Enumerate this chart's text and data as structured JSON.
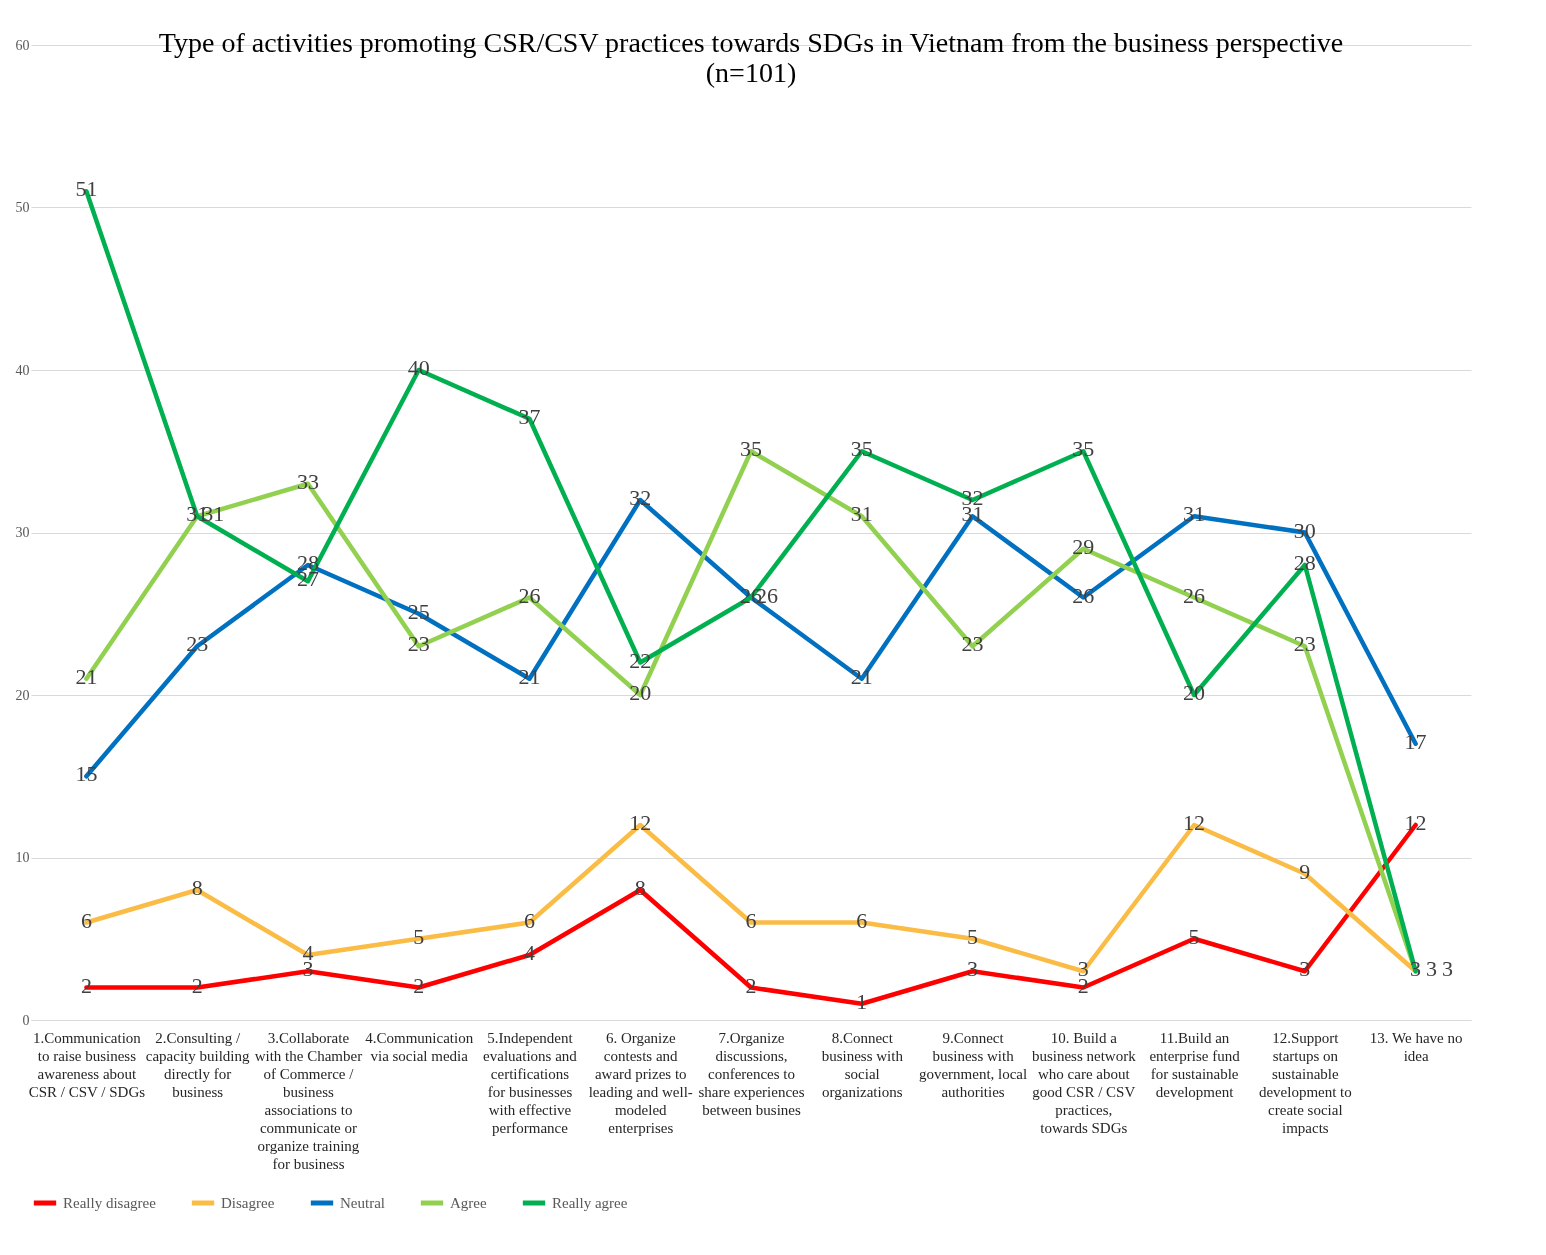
{
  "chart_data": {
    "type": "line",
    "title": "Type of activities promoting CSR/CSV practices towards SDGs in Vietnam from the business perspective (n=101)",
    "categories": [
      "1.Communication to raise business awareness about CSR / CSV / SDGs",
      "2.Consulting / capacity building directly for business",
      "3.Collaborate with the Chamber of Commerce / business associations to communicate or organize training for business",
      "4.Communication via social media",
      "5.Independent evaluations and certifications for businesses with effective performance",
      "6. Organize contests and award prizes to leading and well-modeled enterprises",
      "7.Organize discussions, conferences to share experiences between busines",
      "8.Connect business with social organizations",
      "9.Connect business with government, local authorities",
      "10. Build a business network who care about good CSR / CSV practices, towards SDGs",
      "11.Build an enterprise fund for sustainable development",
      "12.Support startups on sustainable development to create social impacts",
      "13. We have no idea"
    ],
    "series": [
      {
        "name": "Really disagree",
        "color": "#ff0000",
        "values": [
          2,
          2,
          3,
          2,
          4,
          8,
          2,
          1,
          3,
          2,
          5,
          3,
          12
        ]
      },
      {
        "name": "Disagree",
        "color": "#fbbc45",
        "values": [
          6,
          8,
          4,
          5,
          6,
          12,
          6,
          6,
          5,
          3,
          12,
          9,
          3
        ]
      },
      {
        "name": "Neutral",
        "color": "#0070c0",
        "values": [
          15,
          23,
          28,
          25,
          21,
          32,
          26,
          21,
          31,
          26,
          31,
          30,
          17
        ]
      },
      {
        "name": "Agree",
        "color": "#92d050",
        "values": [
          21,
          31,
          33,
          23,
          26,
          20,
          35,
          31,
          23,
          29,
          26,
          23,
          3
        ]
      },
      {
        "name": "Really agree",
        "color": "#00b050",
        "values": [
          51,
          31,
          27,
          40,
          37,
          22,
          26,
          35,
          32,
          35,
          20,
          28,
          3
        ]
      }
    ],
    "ylim": [
      0,
      60
    ],
    "yticks": [
      0,
      10,
      20,
      30,
      40,
      50,
      60
    ],
    "grid": "y",
    "legend": "bottom",
    "data_labels": true,
    "marker": "none",
    "line_style": "solid"
  }
}
